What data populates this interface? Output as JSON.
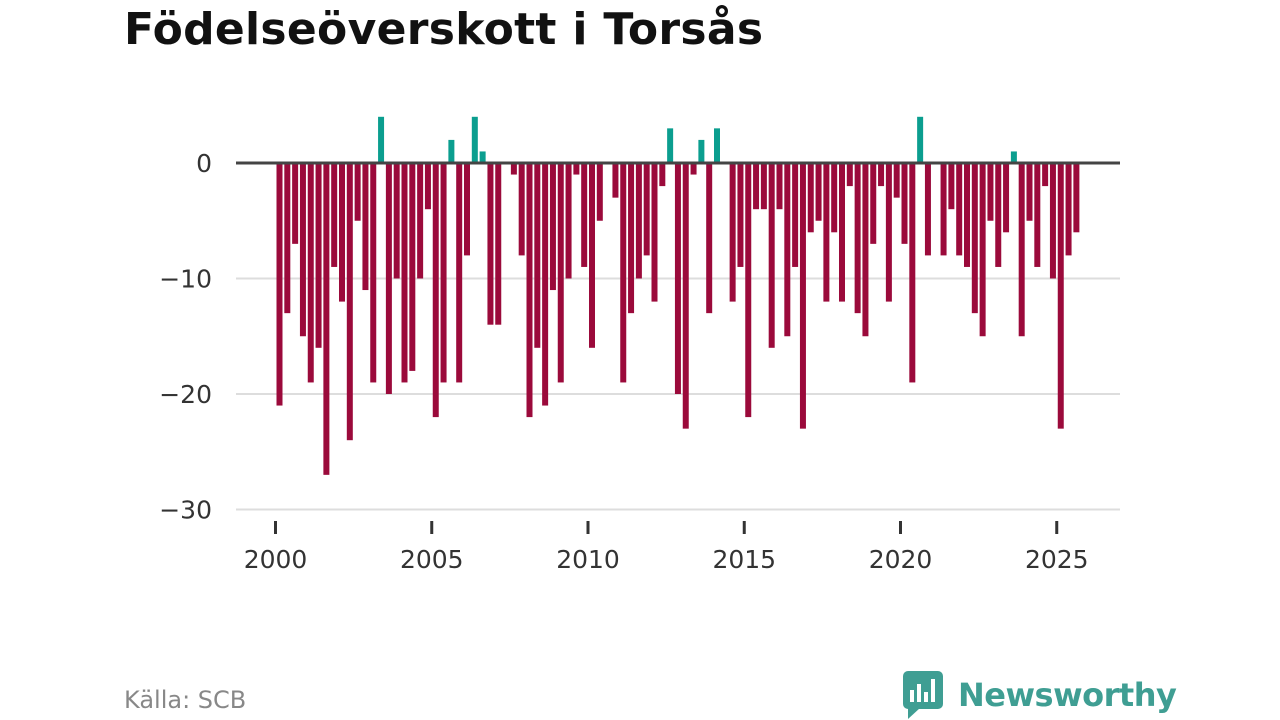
{
  "chart_data": {
    "type": "bar",
    "title": "Födelseöverskott i Torsås",
    "xlabel": "",
    "ylabel": "",
    "x_start": 2000,
    "x_step_per_bar": 0.25,
    "ylim": [
      -30,
      5
    ],
    "yticks": [
      0,
      -10,
      -20,
      -30
    ],
    "ytick_labels": [
      "0",
      "−10",
      "−20",
      "−30"
    ],
    "xticks": [
      2000,
      2005,
      2010,
      2015,
      2020,
      2025
    ],
    "xtick_labels": [
      "2000",
      "2005",
      "2010",
      "2015",
      "2020",
      "2025"
    ],
    "grid": true,
    "legend": "none",
    "colors": {
      "positive": "#0b9e8f",
      "negative": "#9b0a3b",
      "zero_line": "#444444",
      "grid": "#dddddd"
    },
    "values": [
      -21,
      -13,
      -7,
      -15,
      -19,
      -16,
      -27,
      -9,
      -12,
      -24,
      -5,
      -11,
      -19,
      4,
      -20,
      -10,
      -19,
      -18,
      -10,
      -4,
      -22,
      -19,
      2,
      -19,
      -8,
      4,
      1,
      -14,
      -14,
      0,
      -1,
      -8,
      -22,
      -16,
      -21,
      -11,
      -19,
      -10,
      -1,
      -9,
      -16,
      -5,
      0,
      -3,
      -19,
      -13,
      -10,
      -8,
      -12,
      -2,
      3,
      -20,
      -23,
      -1,
      2,
      -13,
      3,
      0,
      -12,
      -9,
      -22,
      -4,
      -4,
      -16,
      -4,
      -15,
      -9,
      -23,
      -6,
      -5,
      -12,
      -6,
      -12,
      -2,
      -13,
      -15,
      -7,
      -2,
      -12,
      -3,
      -7,
      -19,
      4,
      -8,
      0,
      -8,
      -4,
      -8,
      -9,
      -13,
      -15,
      -5,
      -9,
      -6,
      1,
      -15,
      -5,
      -9,
      -2,
      -10,
      -23,
      -8,
      -6
    ]
  },
  "footer": {
    "source": "Källa: SCB",
    "brand": "Newsworthy"
  }
}
